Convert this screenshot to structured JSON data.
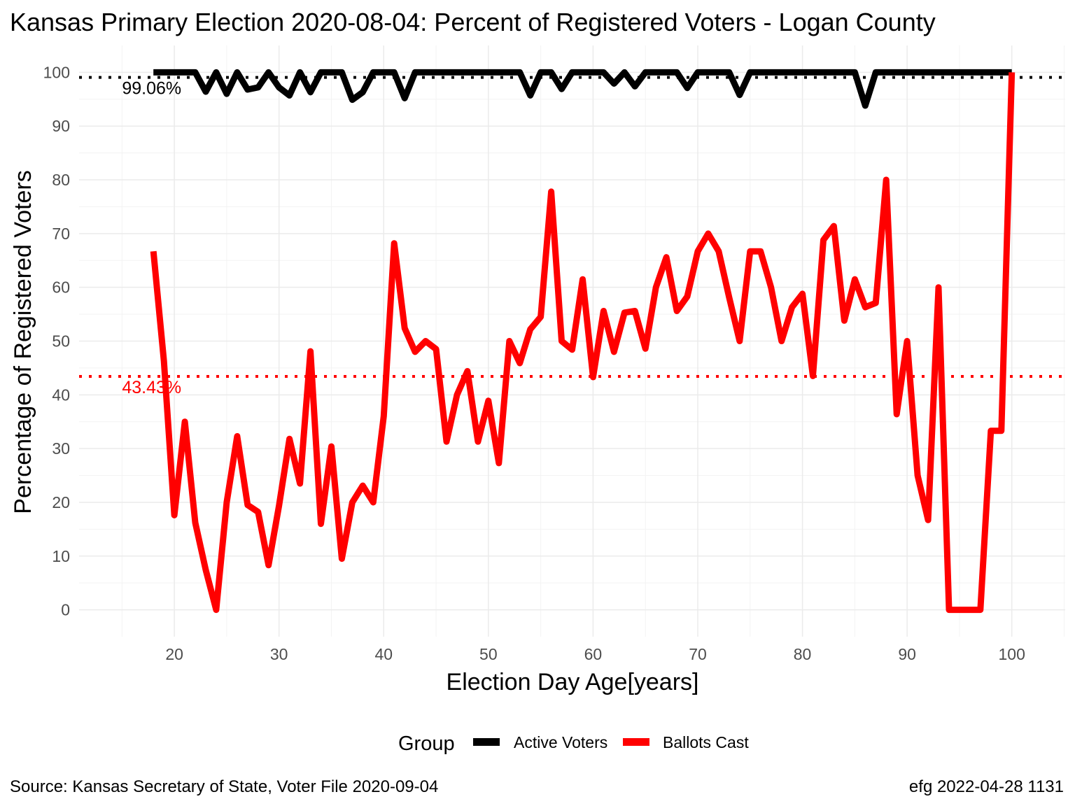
{
  "chart_data": {
    "type": "line",
    "title": "Kansas Primary Election 2020-08-04:  Percent of Registered Voters - Logan County",
    "xlabel": "Election Day Age[years]",
    "ylabel": "Percentage of Registered Voters",
    "xlim": [
      10.9,
      105.1
    ],
    "ylim": [
      -5,
      105
    ],
    "x_ticks": [
      20,
      30,
      40,
      50,
      60,
      70,
      80,
      90,
      100
    ],
    "y_ticks": [
      0,
      10,
      20,
      30,
      40,
      50,
      60,
      70,
      80,
      90,
      100
    ],
    "grid": true,
    "legend": {
      "title": "Group",
      "position": "bottom"
    },
    "series": [
      {
        "name": "Active Voters",
        "color": "#000000",
        "x": [
          18,
          19,
          20,
          21,
          22,
          23,
          24,
          25,
          26,
          27,
          28,
          29,
          30,
          31,
          32,
          33,
          34,
          35,
          36,
          37,
          38,
          39,
          40,
          41,
          42,
          43,
          44,
          45,
          46,
          47,
          48,
          49,
          50,
          51,
          52,
          53,
          54,
          55,
          56,
          57,
          58,
          59,
          60,
          61,
          62,
          63,
          64,
          65,
          66,
          67,
          68,
          69,
          70,
          71,
          72,
          73,
          74,
          75,
          76,
          77,
          78,
          79,
          80,
          81,
          82,
          83,
          84,
          85,
          86,
          87,
          88,
          89,
          90,
          91,
          92,
          93,
          94,
          95,
          96,
          97,
          98,
          99,
          100
        ],
        "values": [
          100,
          100,
          100,
          100,
          100,
          96.4,
          100,
          96,
          100,
          96.8,
          97.2,
          100,
          97.2,
          95.7,
          100,
          96.3,
          100,
          100,
          100,
          94.9,
          96.3,
          100,
          100,
          100,
          95.2,
          100,
          100,
          100,
          100,
          100,
          100,
          100,
          100,
          100,
          100,
          100,
          95.7,
          100,
          100,
          96.9,
          100,
          100,
          100,
          100,
          97.9,
          100,
          97.4,
          100,
          100,
          100,
          100,
          97.1,
          100,
          100,
          100,
          100,
          95.8,
          100,
          100,
          100,
          100,
          100,
          100,
          100,
          100,
          100,
          100,
          100,
          93.8,
          100,
          100,
          100,
          100,
          100,
          100,
          100,
          100,
          100,
          100,
          100,
          100,
          100,
          100
        ]
      },
      {
        "name": "Ballots Cast",
        "color": "#ff0000",
        "x": [
          18,
          19,
          20,
          21,
          22,
          23,
          24,
          25,
          26,
          27,
          28,
          29,
          30,
          31,
          32,
          33,
          34,
          35,
          36,
          37,
          38,
          39,
          40,
          41,
          42,
          43,
          44,
          45,
          46,
          47,
          48,
          49,
          50,
          51,
          52,
          53,
          54,
          55,
          56,
          57,
          58,
          59,
          60,
          61,
          62,
          63,
          64,
          65,
          66,
          67,
          68,
          69,
          70,
          71,
          72,
          73,
          74,
          75,
          76,
          77,
          78,
          79,
          80,
          81,
          82,
          83,
          84,
          85,
          86,
          87,
          88,
          89,
          90,
          91,
          92,
          93,
          94,
          95,
          96,
          97,
          98,
          99,
          100
        ],
        "values": [
          66.7,
          46.3,
          17.6,
          35,
          16.2,
          7.4,
          0,
          20,
          32.3,
          19.5,
          18.2,
          8.3,
          19.4,
          31.8,
          23.5,
          48.1,
          16,
          30.4,
          9.5,
          20,
          23.1,
          20,
          36,
          68.2,
          52.4,
          48,
          50,
          48.5,
          31.3,
          40,
          44.4,
          31.3,
          38.9,
          27.3,
          50,
          45.9,
          52.2,
          54.5,
          77.8,
          50,
          48.4,
          61.5,
          43.3,
          55.6,
          48,
          55.3,
          55.6,
          48.6,
          60,
          65.6,
          55.6,
          58.3,
          66.7,
          70,
          66.7,
          58.1,
          50,
          66.7,
          66.7,
          60,
          50,
          56.3,
          58.8,
          43.5,
          68.8,
          71.4,
          53.8,
          61.5,
          56.3,
          57.1,
          80,
          36.4,
          50,
          25,
          16.7,
          60,
          0,
          0,
          0,
          0,
          33.3,
          33.3,
          100
        ]
      }
    ],
    "reference_lines": [
      {
        "series": "Active Voters",
        "value": 99.06,
        "label": "99.06%",
        "color": "#000000"
      },
      {
        "series": "Ballots Cast",
        "value": 43.43,
        "label": "43.43%",
        "color": "#ff0000"
      }
    ]
  },
  "caption": {
    "source": "Source:  Kansas Secretary of State, Voter File  2020-09-04",
    "credit": "efg 2022-04-28 1131"
  }
}
